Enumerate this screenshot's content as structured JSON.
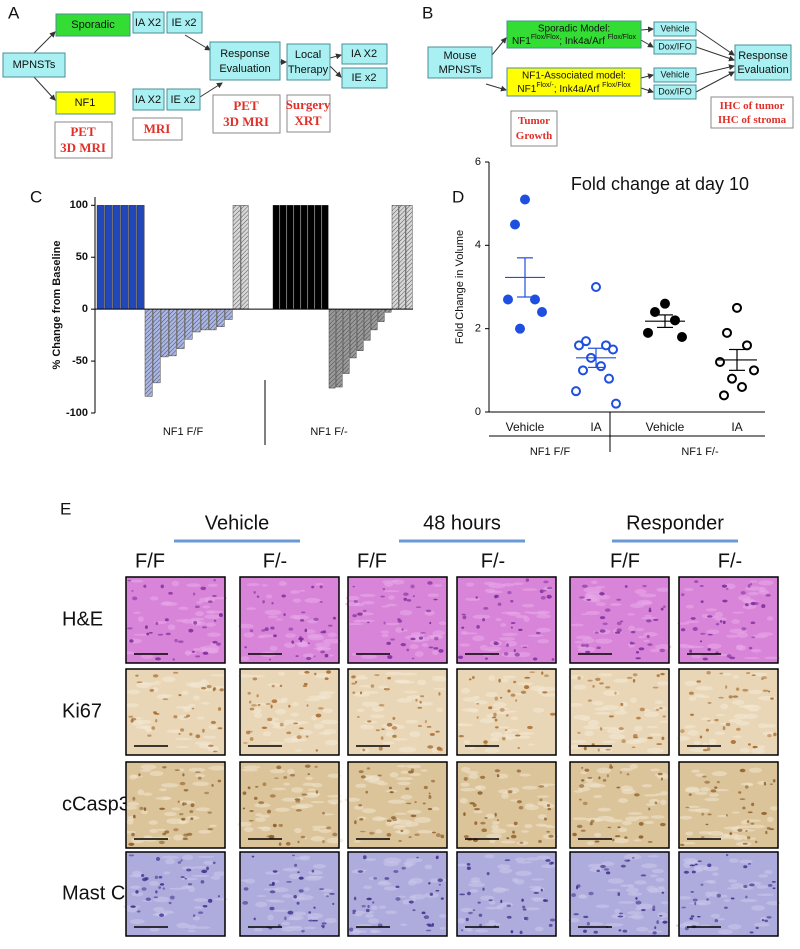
{
  "panel_a": {
    "label": "A",
    "nodes": [
      {
        "lines": [
          "Sporadic"
        ]
      },
      {
        "lines": [
          "MPNSTs"
        ]
      },
      {
        "lines": [
          "NF1"
        ]
      },
      {
        "lines": [
          "PET",
          "3D MRI"
        ]
      },
      {
        "lines": [
          "IA X2"
        ]
      },
      {
        "lines": [
          "IE x2"
        ]
      },
      {
        "lines": [
          "Response",
          "Evaluation"
        ]
      },
      {
        "lines": [
          "IA X2"
        ]
      },
      {
        "lines": [
          "IE x2"
        ]
      },
      {
        "lines": [
          "MRI"
        ]
      },
      {
        "lines": [
          "PET",
          "3D MRI"
        ]
      },
      {
        "lines": [
          "Local",
          "Therapy"
        ]
      },
      {
        "lines": [
          "Surgery",
          "XRT"
        ]
      },
      {
        "lines": [
          "IA X2"
        ]
      },
      {
        "lines": [
          "IE x2"
        ]
      }
    ]
  },
  "panel_b": {
    "label": "B",
    "nodes": [
      {
        "lines": [
          "Mouse",
          "MPNSTs"
        ]
      },
      {
        "title": "Sporadic Model:",
        "parts": [
          {
            "text": "NF1"
          },
          {
            "text": "Flox/Flox",
            "sup": true
          },
          {
            "text": "; Ink4a/Arf "
          },
          {
            "text": "Flox/Flox",
            "sup": true
          }
        ]
      },
      {
        "title": "NF1-Associated model:",
        "parts": [
          {
            "text": "NF1"
          },
          {
            "text": "Flox/-",
            "sup": true
          },
          {
            "text": "; Ink4a/Arf "
          },
          {
            "text": "Flox/Flox",
            "sup": true
          }
        ]
      },
      {
        "lines": [
          "Vehicle"
        ]
      },
      {
        "lines": [
          "Dox/IFO"
        ]
      },
      {
        "lines": [
          "Vehicle"
        ]
      },
      {
        "lines": [
          "Dox/IFO"
        ]
      },
      {
        "lines": [
          "Response",
          "Evaluation"
        ]
      },
      {
        "lines": [
          "Tumor",
          "Growth"
        ]
      },
      {
        "lines": [
          "IHC of tumor",
          "IHC of stroma"
        ]
      }
    ]
  },
  "chart_data": [
    {
      "type": "bar",
      "label": "C",
      "y_label": "% Change from Baseline",
      "ylim": [
        -100,
        108
      ],
      "yticks": [
        100,
        50,
        0,
        -50,
        -100
      ],
      "groups": [
        {
          "name": "NF1 F/F",
          "segments": [
            {
              "color": "#2147b8",
              "hatched": false,
              "values": [
                100,
                100,
                100,
                100,
                100,
                100
              ]
            },
            {
              "color": "#a9b6e6",
              "hatched": true,
              "values": [
                -84,
                -71,
                -46,
                -45,
                -38,
                -29,
                -22,
                -20,
                -20,
                -17,
                -10
              ]
            },
            {
              "color": "#d8d8d8",
              "hatched": true,
              "values": [
                100,
                100
              ]
            }
          ]
        },
        {
          "name": "NF1 F/-",
          "segments": [
            {
              "color": "#000000",
              "hatched": false,
              "values": [
                100,
                100,
                100,
                100,
                100,
                100,
                100,
                100
              ]
            },
            {
              "color": "#9a9a9a",
              "hatched": true,
              "values": [
                -76,
                -75,
                -62,
                -47,
                -40,
                -30,
                -20,
                -12,
                -3
              ]
            },
            {
              "color": "#d8d8d8",
              "hatched": true,
              "values": [
                100,
                100,
                100
              ]
            }
          ]
        }
      ]
    },
    {
      "type": "scatter",
      "label": "D",
      "title": "Fold change at day 10",
      "y_label": "Fold Change in Volume",
      "ylim": [
        0,
        6
      ],
      "yticks": [
        0,
        2,
        4,
        6
      ],
      "categories": [
        "Vehicle",
        "IA",
        "Vehicle",
        "IA"
      ],
      "group_labels": [
        "NF1 F/F",
        "NF1 F/-"
      ],
      "sets": [
        {
          "color": "#1f4fe0",
          "filled": true,
          "values": [
            5.1,
            4.5,
            2.7,
            2.7,
            2.4,
            2.0
          ],
          "mean": 3.23,
          "sem": 0.47
        },
        {
          "color": "#1f4fe0",
          "filled": false,
          "values": [
            3.0,
            1.7,
            1.6,
            1.6,
            1.5,
            1.3,
            1.1,
            1.0,
            0.8,
            0.5,
            0.2
          ],
          "mean": 1.3,
          "sem": 0.23
        },
        {
          "color": "#000000",
          "filled": true,
          "values": [
            2.6,
            2.4,
            2.2,
            1.9,
            1.8
          ],
          "mean": 2.18,
          "sem": 0.15
        },
        {
          "color": "#000000",
          "filled": false,
          "values": [
            2.5,
            1.9,
            1.6,
            1.2,
            1.0,
            0.8,
            0.6,
            0.4
          ],
          "mean": 1.25,
          "sem": 0.25
        }
      ]
    }
  ],
  "panel_e": {
    "label": "E",
    "conditions": [
      "Vehicle",
      "48 hours",
      "Responder"
    ],
    "genotypes": [
      "F/F",
      "F/-",
      "F/F",
      "F/-",
      "F/F",
      "F/-"
    ],
    "stains": [
      "H&E",
      "Ki67",
      "cCasp3",
      "Mast Cell"
    ]
  }
}
